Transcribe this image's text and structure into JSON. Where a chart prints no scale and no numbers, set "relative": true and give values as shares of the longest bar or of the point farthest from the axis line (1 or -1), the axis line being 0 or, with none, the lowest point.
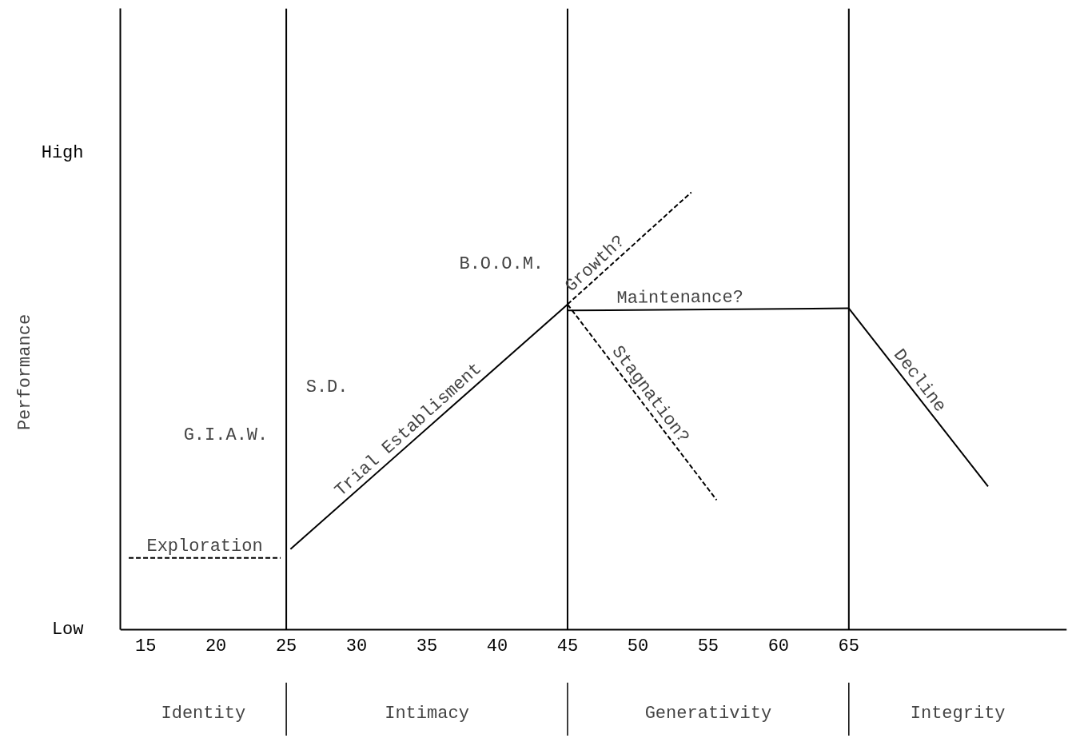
{
  "chart_data": {
    "type": "line",
    "relative": true,
    "ylabel": "Performance",
    "xlim": [
      13.2,
      80.5
    ],
    "xticks": [
      15,
      20,
      25,
      30,
      35,
      40,
      45,
      50,
      55,
      60,
      65
    ],
    "series": [
      {
        "name": "Exploration",
        "color": "#000000",
        "line_style": "dashed",
        "x": [
          13.8,
          24.6
        ],
        "values": [
          0.165,
          0.165
        ]
      },
      {
        "name": "Trial Establisment",
        "color": "#000000",
        "line_style": "solid",
        "x": [
          25.3,
          45
        ],
        "values": [
          0.185,
          0.744
        ]
      },
      {
        "name": "Growth?",
        "color": "#000000",
        "line_style": "dashed",
        "x": [
          45,
          53.8
        ],
        "values": [
          0.744,
          1.0
        ]
      },
      {
        "name": "Maintenance?",
        "color": "#000000",
        "line_style": "solid",
        "x": [
          45,
          65
        ],
        "values": [
          0.73,
          0.735
        ]
      },
      {
        "name": "Stagnation?",
        "color": "#000000",
        "line_style": "dashed",
        "x": [
          45,
          55.6
        ],
        "values": [
          0.744,
          0.297
        ]
      },
      {
        "name": "Decline",
        "color": "#000000",
        "line_style": "solid",
        "x": [
          65,
          74.9
        ],
        "values": [
          0.735,
          0.328
        ]
      }
    ],
    "ref_lines": [
      {
        "axis": "x",
        "value": 25
      },
      {
        "axis": "x",
        "value": 45
      },
      {
        "axis": "x",
        "value": 65
      }
    ],
    "annotations": [
      "High",
      "Low",
      "G.I.A.W.",
      "S.D.",
      "B.O.O.M.",
      "Identity",
      "Intimacy",
      "Generativity",
      "Integrity"
    ]
  }
}
